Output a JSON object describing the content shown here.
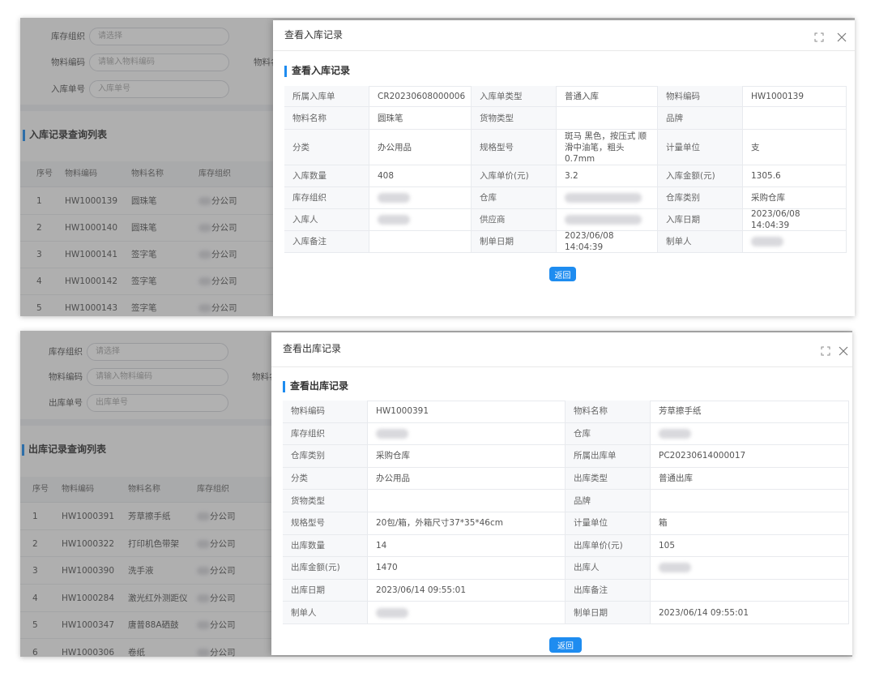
{
  "inbound": {
    "filters": [
      {
        "label": "库存组织",
        "placeholder": "请选择"
      },
      {
        "label": "物料编码",
        "placeholder": "请输入物料编码"
      },
      {
        "label": "入库单号",
        "placeholder": "入库单号"
      }
    ],
    "cut_label": "物料名",
    "list_title": "入库记录查询列表",
    "list_headers": [
      "序号",
      "物料编码",
      "物料名称",
      "库存组织"
    ],
    "list_rows": [
      [
        1,
        "HW1000139",
        "圆珠笔",
        "分公司"
      ],
      [
        2,
        "HW1000140",
        "圆珠笔",
        "分公司"
      ],
      [
        3,
        "HW1000141",
        "签字笔",
        "分公司"
      ],
      [
        4,
        "HW1000142",
        "签字笔",
        "分公司"
      ],
      [
        5,
        "HW1000143",
        "签字笔",
        "分公司"
      ]
    ],
    "modal": {
      "title": "查看入库记录",
      "section_title": "查看入库记录",
      "rows": [
        [
          "所属入库单",
          "CR20230608000006",
          "入库单类型",
          "普通入库",
          "物料编码",
          "HW1000139"
        ],
        [
          "物料名称",
          "圆珠笔",
          "货物类型",
          null,
          "品牌",
          null
        ],
        [
          "分类",
          "办公用品",
          "规格型号",
          "斑马 黑色，按压式 顺滑中油笔，粗头0.7mm",
          "计量单位",
          "支"
        ],
        [
          "入库数量",
          "408",
          "入库单价(元)",
          "3.2",
          "入库金额(元)",
          "1305.6"
        ],
        [
          "库存组织",
          null,
          "仓库",
          null,
          "仓库类别",
          "采购仓库"
        ],
        [
          "入库人",
          null,
          "供应商",
          null,
          "入库日期",
          "2023/06/08 14:04:39"
        ],
        [
          "入库备注",
          null,
          "制单日期",
          "2023/06/08 14:04:39",
          "制单人",
          null
        ]
      ],
      "button": "返回"
    }
  },
  "outbound": {
    "filters": [
      {
        "label": "库存组织",
        "placeholder": "请选择"
      },
      {
        "label": "物料编码",
        "placeholder": "请输入物料编码"
      },
      {
        "label": "出库单号",
        "placeholder": "出库单号"
      }
    ],
    "cut_label": "物料名",
    "list_title": "出库记录查询列表",
    "list_headers": [
      "序号",
      "物料编码",
      "物料名称",
      "库存组织"
    ],
    "list_rows": [
      [
        1,
        "HW1000391",
        "芳草擦手纸",
        "分公司"
      ],
      [
        2,
        "HW1000322",
        "打印机色带架",
        "分公司"
      ],
      [
        3,
        "HW1000390",
        "洗手液",
        "分公司"
      ],
      [
        4,
        "HW1000284",
        "激光红外测距仪",
        "分公司"
      ],
      [
        5,
        "HW1000347",
        "唐普88A硒鼓",
        "分公司"
      ],
      [
        6,
        "HW1000306",
        "卷纸",
        "分公司"
      ]
    ],
    "modal": {
      "title": "查看出库记录",
      "section_title": "查看出库记录",
      "rows": [
        [
          "物料编码",
          "HW1000391",
          "物料名称",
          "芳草擦手纸"
        ],
        [
          "库存组织",
          null,
          "仓库",
          null
        ],
        [
          "仓库类别",
          "采购仓库",
          "所属出库单",
          "PC20230614000017"
        ],
        [
          "分类",
          "办公用品",
          "出库类型",
          "普通出库"
        ],
        [
          "货物类型",
          null,
          "品牌",
          null
        ],
        [
          "规格型号",
          "20包/箱，外箱尺寸37*35*46cm",
          "计量单位",
          "箱"
        ],
        [
          "出库数量",
          "14",
          "出库单价(元)",
          "105"
        ],
        [
          "出库金额(元)",
          "1470",
          "出库人",
          null
        ],
        [
          "出库日期",
          "2023/06/14 09:55:01",
          "出库备注",
          null
        ],
        [
          "制单人",
          null,
          "制单日期",
          "2023/06/14 09:55:01"
        ]
      ],
      "button": "返回"
    }
  }
}
